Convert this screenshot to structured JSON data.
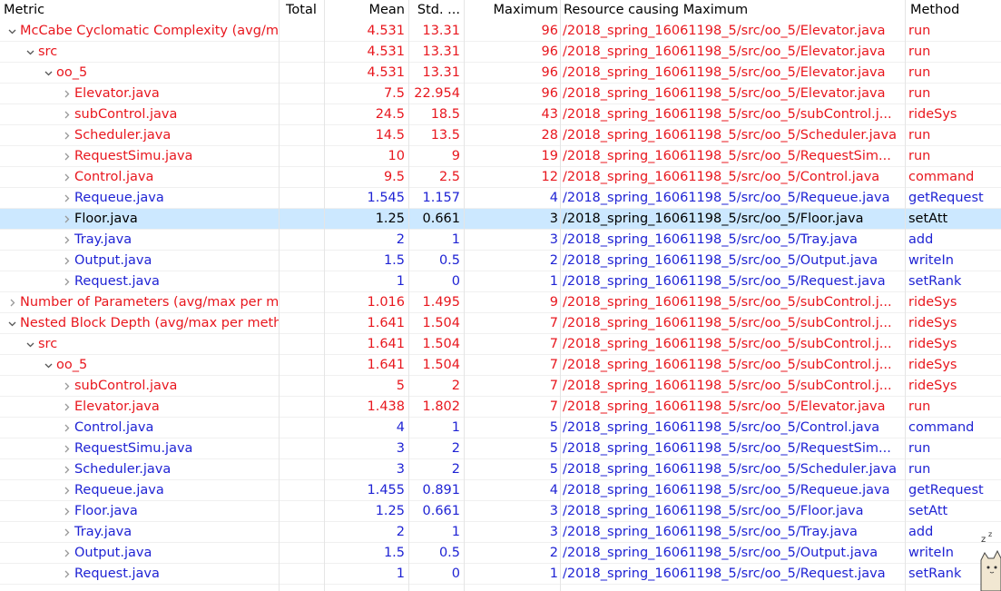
{
  "header": {
    "metric": "Metric",
    "total": "Total",
    "mean": "Mean",
    "std": "Std. ...",
    "max": "Maximum",
    "resource": "Resource causing Maximum",
    "method": "Method"
  },
  "rows": [
    {
      "level": 0,
      "expanded": true,
      "color": "red",
      "metric": "McCabe Cyclomatic Complexity (avg/max per method)",
      "total": "",
      "mean": "4.531",
      "std": "13.31",
      "max": "96",
      "resource": "/2018_spring_16061198_5/src/oo_5/Elevator.java",
      "method": "run"
    },
    {
      "level": 1,
      "expanded": true,
      "color": "red",
      "metric": "src",
      "total": "",
      "mean": "4.531",
      "std": "13.31",
      "max": "96",
      "resource": "/2018_spring_16061198_5/src/oo_5/Elevator.java",
      "method": "run"
    },
    {
      "level": 2,
      "expanded": true,
      "color": "red",
      "metric": "oo_5",
      "total": "",
      "mean": "4.531",
      "std": "13.31",
      "max": "96",
      "resource": "/2018_spring_16061198_5/src/oo_5/Elevator.java",
      "method": "run"
    },
    {
      "level": 3,
      "expanded": false,
      "color": "red",
      "metric": "Elevator.java",
      "total": "",
      "mean": "7.5",
      "std": "22.954",
      "max": "96",
      "resource": "/2018_spring_16061198_5/src/oo_5/Elevator.java",
      "method": "run"
    },
    {
      "level": 3,
      "expanded": false,
      "color": "red",
      "metric": "subControl.java",
      "total": "",
      "mean": "24.5",
      "std": "18.5",
      "max": "43",
      "resource": "/2018_spring_16061198_5/src/oo_5/subControl.j...",
      "method": "rideSys"
    },
    {
      "level": 3,
      "expanded": false,
      "color": "red",
      "metric": "Scheduler.java",
      "total": "",
      "mean": "14.5",
      "std": "13.5",
      "max": "28",
      "resource": "/2018_spring_16061198_5/src/oo_5/Scheduler.java",
      "method": "run"
    },
    {
      "level": 3,
      "expanded": false,
      "color": "red",
      "metric": "RequestSimu.java",
      "total": "",
      "mean": "10",
      "std": "9",
      "max": "19",
      "resource": "/2018_spring_16061198_5/src/oo_5/RequestSim...",
      "method": "run"
    },
    {
      "level": 3,
      "expanded": false,
      "color": "red",
      "metric": "Control.java",
      "total": "",
      "mean": "9.5",
      "std": "2.5",
      "max": "12",
      "resource": "/2018_spring_16061198_5/src/oo_5/Control.java",
      "method": "command"
    },
    {
      "level": 3,
      "expanded": false,
      "color": "blue",
      "metric": "Requeue.java",
      "total": "",
      "mean": "1.545",
      "std": "1.157",
      "max": "4",
      "resource": "/2018_spring_16061198_5/src/oo_5/Requeue.java",
      "method": "getRequest"
    },
    {
      "level": 3,
      "expanded": false,
      "color": "dark",
      "selected": true,
      "metric": "Floor.java",
      "total": "",
      "mean": "1.25",
      "std": "0.661",
      "max": "3",
      "resource": "/2018_spring_16061198_5/src/oo_5/Floor.java",
      "method": "setAtt"
    },
    {
      "level": 3,
      "expanded": false,
      "color": "blue",
      "metric": "Tray.java",
      "total": "",
      "mean": "2",
      "std": "1",
      "max": "3",
      "resource": "/2018_spring_16061198_5/src/oo_5/Tray.java",
      "method": "add"
    },
    {
      "level": 3,
      "expanded": false,
      "color": "blue",
      "metric": "Output.java",
      "total": "",
      "mean": "1.5",
      "std": "0.5",
      "max": "2",
      "resource": "/2018_spring_16061198_5/src/oo_5/Output.java",
      "method": "writeIn"
    },
    {
      "level": 3,
      "expanded": false,
      "color": "blue",
      "metric": "Request.java",
      "total": "",
      "mean": "1",
      "std": "0",
      "max": "1",
      "resource": "/2018_spring_16061198_5/src/oo_5/Request.java",
      "method": "setRank"
    },
    {
      "level": 0,
      "expanded": false,
      "color": "red",
      "metric": "Number of Parameters (avg/max per method)",
      "total": "",
      "mean": "1.016",
      "std": "1.495",
      "max": "9",
      "resource": "/2018_spring_16061198_5/src/oo_5/subControl.j...",
      "method": "rideSys"
    },
    {
      "level": 0,
      "expanded": true,
      "color": "red",
      "metric": "Nested Block Depth (avg/max per method)",
      "total": "",
      "mean": "1.641",
      "std": "1.504",
      "max": "7",
      "resource": "/2018_spring_16061198_5/src/oo_5/subControl.j...",
      "method": "rideSys"
    },
    {
      "level": 1,
      "expanded": true,
      "color": "red",
      "metric": "src",
      "total": "",
      "mean": "1.641",
      "std": "1.504",
      "max": "7",
      "resource": "/2018_spring_16061198_5/src/oo_5/subControl.j...",
      "method": "rideSys"
    },
    {
      "level": 2,
      "expanded": true,
      "color": "red",
      "metric": "oo_5",
      "total": "",
      "mean": "1.641",
      "std": "1.504",
      "max": "7",
      "resource": "/2018_spring_16061198_5/src/oo_5/subControl.j...",
      "method": "rideSys"
    },
    {
      "level": 3,
      "expanded": false,
      "color": "red",
      "metric": "subControl.java",
      "total": "",
      "mean": "5",
      "std": "2",
      "max": "7",
      "resource": "/2018_spring_16061198_5/src/oo_5/subControl.j...",
      "method": "rideSys"
    },
    {
      "level": 3,
      "expanded": false,
      "color": "red",
      "metric": "Elevator.java",
      "total": "",
      "mean": "1.438",
      "std": "1.802",
      "max": "7",
      "resource": "/2018_spring_16061198_5/src/oo_5/Elevator.java",
      "method": "run"
    },
    {
      "level": 3,
      "expanded": false,
      "color": "blue",
      "metric": "Control.java",
      "total": "",
      "mean": "4",
      "std": "1",
      "max": "5",
      "resource": "/2018_spring_16061198_5/src/oo_5/Control.java",
      "method": "command"
    },
    {
      "level": 3,
      "expanded": false,
      "color": "blue",
      "metric": "RequestSimu.java",
      "total": "",
      "mean": "3",
      "std": "2",
      "max": "5",
      "resource": "/2018_spring_16061198_5/src/oo_5/RequestSim...",
      "method": "run"
    },
    {
      "level": 3,
      "expanded": false,
      "color": "blue",
      "metric": "Scheduler.java",
      "total": "",
      "mean": "3",
      "std": "2",
      "max": "5",
      "resource": "/2018_spring_16061198_5/src/oo_5/Scheduler.java",
      "method": "run"
    },
    {
      "level": 3,
      "expanded": false,
      "color": "blue",
      "metric": "Requeue.java",
      "total": "",
      "mean": "1.455",
      "std": "0.891",
      "max": "4",
      "resource": "/2018_spring_16061198_5/src/oo_5/Requeue.java",
      "method": "getRequest"
    },
    {
      "level": 3,
      "expanded": false,
      "color": "blue",
      "metric": "Floor.java",
      "total": "",
      "mean": "1.25",
      "std": "0.661",
      "max": "3",
      "resource": "/2018_spring_16061198_5/src/oo_5/Floor.java",
      "method": "setAtt"
    },
    {
      "level": 3,
      "expanded": false,
      "color": "blue",
      "metric": "Tray.java",
      "total": "",
      "mean": "2",
      "std": "1",
      "max": "3",
      "resource": "/2018_spring_16061198_5/src/oo_5/Tray.java",
      "method": "add"
    },
    {
      "level": 3,
      "expanded": false,
      "color": "blue",
      "metric": "Output.java",
      "total": "",
      "mean": "1.5",
      "std": "0.5",
      "max": "2",
      "resource": "/2018_spring_16061198_5/src/oo_5/Output.java",
      "method": "writeIn"
    },
    {
      "level": 3,
      "expanded": false,
      "color": "blue",
      "metric": "Request.java",
      "total": "",
      "mean": "1",
      "std": "0",
      "max": "1",
      "resource": "/2018_spring_16061198_5/src/oo_5/Request.java",
      "method": "setRank"
    }
  ],
  "colors": {
    "red": "#e8171e",
    "blue": "#1f23d4",
    "dark": "#000000",
    "selected": "#cce8ff"
  },
  "icons": {
    "expanded": "chevron-down-icon",
    "collapsed": "chevron-right-icon"
  }
}
